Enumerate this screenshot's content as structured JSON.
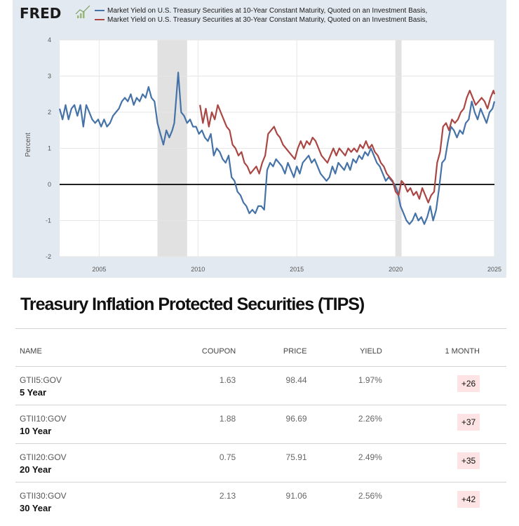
{
  "chart_data": {
    "type": "line",
    "brand": "FRED",
    "ylabel": "Percent",
    "xlim": [
      2003,
      2025
    ],
    "ylim": [
      -2,
      4
    ],
    "x_ticks": [
      "2005",
      "2010",
      "2015",
      "2020",
      "2025"
    ],
    "y_ticks": [
      "4",
      "3",
      "2",
      "1",
      "0",
      "-1",
      "-2"
    ],
    "recessions": [
      [
        2007.95,
        2009.45
      ],
      [
        2020.0,
        2020.3
      ]
    ],
    "series": [
      {
        "name": "Market Yield on U.S. Treasury Securities at 10-Year Constant Maturity, Quoted on an Investment Basis,",
        "color": "#4572a7",
        "x": [
          2003.0,
          2003.15,
          2003.3,
          2003.45,
          2003.6,
          2003.75,
          2003.9,
          2004.05,
          2004.2,
          2004.35,
          2004.5,
          2004.65,
          2004.8,
          2004.95,
          2005.1,
          2005.25,
          2005.4,
          2005.55,
          2005.7,
          2005.85,
          2006.0,
          2006.15,
          2006.3,
          2006.45,
          2006.6,
          2006.75,
          2006.9,
          2007.05,
          2007.2,
          2007.35,
          2007.5,
          2007.65,
          2007.8,
          2007.95,
          2008.1,
          2008.25,
          2008.4,
          2008.55,
          2008.7,
          2008.8,
          2008.9,
          2009.0,
          2009.15,
          2009.3,
          2009.45,
          2009.6,
          2009.75,
          2009.9,
          2010.05,
          2010.2,
          2010.35,
          2010.5,
          2010.65,
          2010.8,
          2010.95,
          2011.1,
          2011.25,
          2011.4,
          2011.55,
          2011.7,
          2011.85,
          2012.0,
          2012.15,
          2012.3,
          2012.45,
          2012.6,
          2012.75,
          2012.9,
          2013.05,
          2013.2,
          2013.35,
          2013.5,
          2013.65,
          2013.8,
          2013.95,
          2014.1,
          2014.25,
          2014.4,
          2014.55,
          2014.7,
          2014.85,
          2015.0,
          2015.15,
          2015.3,
          2015.45,
          2015.6,
          2015.75,
          2015.9,
          2016.05,
          2016.2,
          2016.35,
          2016.5,
          2016.65,
          2016.8,
          2016.95,
          2017.1,
          2017.25,
          2017.4,
          2017.55,
          2017.7,
          2017.85,
          2018.0,
          2018.15,
          2018.3,
          2018.45,
          2018.6,
          2018.75,
          2018.9,
          2019.05,
          2019.2,
          2019.35,
          2019.5,
          2019.65,
          2019.8,
          2019.95,
          2020.1,
          2020.25,
          2020.4,
          2020.55,
          2020.7,
          2020.85,
          2021.0,
          2021.15,
          2021.3,
          2021.45,
          2021.6,
          2021.75,
          2021.9,
          2022.05,
          2022.2,
          2022.35,
          2022.5,
          2022.65,
          2022.8,
          2022.95,
          2023.1,
          2023.25,
          2023.4,
          2023.55,
          2023.7,
          2023.85,
          2024.0,
          2024.15,
          2024.3,
          2024.45,
          2024.6,
          2024.75,
          2024.9,
          2025.0
        ],
        "values": [
          2.1,
          1.8,
          2.2,
          1.8,
          2.1,
          2.2,
          1.9,
          2.2,
          1.6,
          2.2,
          2.0,
          1.8,
          1.7,
          1.8,
          1.6,
          1.8,
          1.6,
          1.7,
          1.9,
          2.0,
          2.1,
          2.3,
          2.4,
          2.3,
          2.5,
          2.2,
          2.4,
          2.3,
          2.5,
          2.4,
          2.7,
          2.4,
          2.3,
          1.7,
          1.4,
          1.1,
          1.5,
          1.3,
          1.5,
          1.7,
          2.4,
          3.1,
          2.0,
          1.9,
          1.7,
          1.8,
          1.6,
          1.6,
          1.4,
          1.5,
          1.3,
          1.2,
          1.4,
          0.8,
          1.0,
          0.9,
          0.7,
          0.6,
          0.8,
          0.2,
          0.1,
          -0.2,
          -0.3,
          -0.5,
          -0.6,
          -0.8,
          -0.7,
          -0.8,
          -0.6,
          -0.6,
          -0.7,
          0.4,
          0.6,
          0.5,
          0.7,
          0.6,
          0.5,
          0.3,
          0.6,
          0.4,
          0.2,
          0.5,
          0.3,
          0.6,
          0.7,
          0.8,
          0.6,
          0.7,
          0.5,
          0.3,
          0.2,
          0.1,
          0.2,
          0.5,
          0.3,
          0.6,
          0.5,
          0.4,
          0.6,
          0.4,
          0.7,
          0.6,
          0.8,
          0.7,
          0.9,
          0.8,
          1.0,
          0.8,
          0.6,
          0.5,
          0.3,
          0.1,
          0.2,
          0.1,
          0.0,
          -0.2,
          -0.6,
          -0.8,
          -1.0,
          -1.1,
          -1.0,
          -0.8,
          -1.0,
          -0.9,
          -1.1,
          -0.9,
          -0.6,
          -1.0,
          -0.7,
          -0.1,
          0.6,
          0.7,
          1.2,
          1.6,
          1.5,
          1.3,
          1.5,
          1.4,
          1.7,
          1.8,
          2.3,
          2.0,
          1.8,
          2.1,
          1.9,
          1.7,
          2.0,
          2.1,
          2.3
        ]
      },
      {
        "name": "Market Yield on U.S. Treasury Securities at 30-Year Constant Maturity, Quoted on an Investment Basis,",
        "color": "#aa4643",
        "x": [
          2010.1,
          2010.25,
          2010.4,
          2010.55,
          2010.7,
          2010.85,
          2011.0,
          2011.15,
          2011.3,
          2011.45,
          2011.6,
          2011.75,
          2011.9,
          2012.05,
          2012.2,
          2012.35,
          2012.5,
          2012.65,
          2012.8,
          2012.95,
          2013.1,
          2013.25,
          2013.4,
          2013.55,
          2013.7,
          2013.85,
          2014.0,
          2014.15,
          2014.3,
          2014.45,
          2014.6,
          2014.75,
          2014.9,
          2015.05,
          2015.2,
          2015.35,
          2015.5,
          2015.65,
          2015.8,
          2015.95,
          2016.1,
          2016.25,
          2016.4,
          2016.55,
          2016.7,
          2016.85,
          2017.0,
          2017.15,
          2017.3,
          2017.45,
          2017.6,
          2017.75,
          2017.9,
          2018.05,
          2018.2,
          2018.35,
          2018.5,
          2018.65,
          2018.8,
          2018.95,
          2019.1,
          2019.25,
          2019.4,
          2019.55,
          2019.7,
          2019.85,
          2020.0,
          2020.15,
          2020.3,
          2020.45,
          2020.6,
          2020.75,
          2020.9,
          2021.05,
          2021.2,
          2021.35,
          2021.5,
          2021.65,
          2021.8,
          2021.95,
          2022.1,
          2022.25,
          2022.4,
          2022.55,
          2022.7,
          2022.85,
          2023.0,
          2023.15,
          2023.3,
          2023.45,
          2023.6,
          2023.75,
          2023.9,
          2024.05,
          2024.2,
          2024.35,
          2024.5,
          2024.65,
          2024.8,
          2024.95,
          2025.0
        ],
        "values": [
          2.2,
          1.7,
          2.1,
          1.6,
          2.0,
          1.8,
          2.2,
          2.0,
          1.8,
          1.6,
          1.5,
          1.1,
          1.0,
          0.8,
          0.9,
          0.6,
          0.5,
          0.3,
          0.4,
          0.5,
          0.3,
          0.6,
          0.8,
          1.4,
          1.5,
          1.6,
          1.4,
          1.3,
          1.1,
          1.0,
          0.9,
          0.8,
          0.7,
          1.0,
          1.2,
          1.0,
          1.2,
          1.1,
          1.3,
          1.2,
          1.0,
          0.8,
          0.7,
          0.6,
          0.8,
          1.0,
          0.8,
          1.0,
          0.9,
          0.8,
          1.0,
          0.9,
          1.0,
          0.9,
          1.1,
          1.0,
          1.2,
          1.0,
          1.1,
          0.9,
          0.8,
          0.6,
          0.5,
          0.3,
          0.2,
          0.1,
          -0.2,
          -0.3,
          0.1,
          0.0,
          -0.2,
          -0.1,
          -0.3,
          -0.2,
          -0.4,
          -0.1,
          -0.3,
          -0.5,
          -0.3,
          -0.2,
          0.6,
          0.9,
          1.6,
          1.7,
          1.5,
          1.8,
          1.7,
          1.8,
          2.0,
          2.1,
          2.4,
          2.6,
          2.4,
          2.2,
          2.3,
          2.4,
          2.3,
          2.1,
          2.4,
          2.6,
          2.5
        ]
      }
    ]
  },
  "tips": {
    "title": "Treasury Inflation Protected Securities (TIPS)",
    "columns": {
      "name": "NAME",
      "coupon": "COUPON",
      "price": "PRICE",
      "yield": "YIELD",
      "change": "1 MONTH"
    },
    "rows": [
      {
        "ticker": "GTII5:GOV",
        "term": "5 Year",
        "coupon": "1.63",
        "price": "98.44",
        "yield": "1.97%",
        "change": "+26"
      },
      {
        "ticker": "GTII10:GOV",
        "term": "10 Year",
        "coupon": "1.88",
        "price": "96.69",
        "yield": "2.26%",
        "change": "+37"
      },
      {
        "ticker": "GTII20:GOV",
        "term": "20 Year",
        "coupon": "0.75",
        "price": "75.91",
        "yield": "2.49%",
        "change": "+35"
      },
      {
        "ticker": "GTII30:GOV",
        "term": "30 Year",
        "coupon": "2.13",
        "price": "91.06",
        "yield": "2.56%",
        "change": "+42"
      }
    ]
  }
}
